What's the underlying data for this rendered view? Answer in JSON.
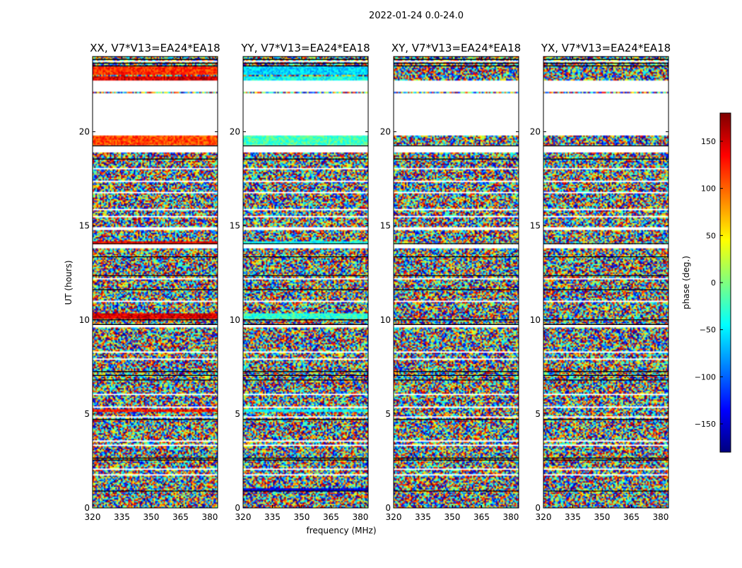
{
  "figure": {
    "suptitle": "2022-01-24 0.0-24.0",
    "xlabel": "frequency (MHz)",
    "ylabel": "UT (hours)"
  },
  "colorbar": {
    "label": "phase (deg.)",
    "range": [
      -180,
      180
    ],
    "ticks": [
      -150,
      -100,
      -50,
      0,
      50,
      100,
      150
    ],
    "tick_labels": [
      "−150",
      "−100",
      "−50",
      "0",
      "50",
      "100",
      "150"
    ],
    "colormap": [
      "#00007f",
      "#0000ff",
      "#007fff",
      "#00ffff",
      "#7fff7f",
      "#ffff00",
      "#ff7f00",
      "#ff0000",
      "#7f0000"
    ]
  },
  "chart_data": [
    {
      "type": "heatmap",
      "title": "XX, V7*V13=EA24*EA18",
      "polarization": "XX",
      "xlabel": "",
      "ylabel": "UT (hours)",
      "xlim": [
        320,
        384
      ],
      "ylim": [
        0,
        24
      ],
      "xticks": [
        320,
        335,
        350,
        365,
        380
      ],
      "yticks": [
        0,
        5,
        10,
        15,
        20
      ],
      "value": "phase (deg.)",
      "coherent_bands": [
        {
          "start": 23.0,
          "end": 23.45,
          "phase": 120
        },
        {
          "start": 22.75,
          "end": 22.95,
          "phase": 150
        },
        {
          "start": 19.3,
          "end": 19.8,
          "phase": 110
        },
        {
          "start": 14.0,
          "end": 14.15,
          "phase": 140
        },
        {
          "start": 10.05,
          "end": 10.35,
          "phase": 150
        },
        {
          "start": 5.1,
          "end": 5.25,
          "phase": 130
        }
      ]
    },
    {
      "type": "heatmap",
      "title": "YY, V7*V13=EA24*EA18",
      "polarization": "YY",
      "xlabel": "frequency (MHz)",
      "ylabel": "",
      "xlim": [
        320,
        384
      ],
      "ylim": [
        0,
        24
      ],
      "xticks": [
        320,
        335,
        350,
        365,
        380
      ],
      "yticks": [
        0,
        5,
        10,
        15,
        20
      ],
      "value": "phase (deg.)",
      "coherent_bands": [
        {
          "start": 23.0,
          "end": 23.45,
          "phase": -60
        },
        {
          "start": 22.75,
          "end": 22.95,
          "phase": -40
        },
        {
          "start": 19.3,
          "end": 19.8,
          "phase": -20
        },
        {
          "start": 14.0,
          "end": 14.15,
          "phase": -40
        },
        {
          "start": 10.05,
          "end": 10.35,
          "phase": -30
        },
        {
          "start": 5.1,
          "end": 5.25,
          "phase": -50
        },
        {
          "start": 0.9,
          "end": 1.05,
          "phase": -150
        }
      ]
    },
    {
      "type": "heatmap",
      "title": "XY, V7*V13=EA24*EA18",
      "polarization": "XY",
      "xlabel": "",
      "ylabel": "",
      "xlim": [
        320,
        384
      ],
      "ylim": [
        0,
        24
      ],
      "xticks": [
        320,
        335,
        350,
        365,
        380
      ],
      "yticks": [
        0,
        5,
        10,
        15,
        20
      ],
      "value": "phase (deg.)",
      "coherent_bands": []
    },
    {
      "type": "heatmap",
      "title": "YX, V7*V13=EA24*EA18",
      "polarization": "YX",
      "xlabel": "",
      "ylabel": "",
      "xlim": [
        320,
        384
      ],
      "ylim": [
        0,
        24
      ],
      "xticks": [
        320,
        335,
        350,
        365,
        380
      ],
      "yticks": [
        0,
        5,
        10,
        15,
        20
      ],
      "value": "phase (deg.)",
      "coherent_bands": []
    }
  ],
  "time_structure": {
    "gaps_hours": [
      [
        18.9,
        19.25
      ],
      [
        19.8,
        22.05
      ],
      [
        22.15,
        22.7
      ],
      [
        13.8,
        14.0
      ],
      [
        9.6,
        9.75
      ]
    ],
    "thin_gaps_hours": [
      3.35,
      3.55,
      4.85,
      8.3,
      15.5,
      15.85,
      16.75,
      12.2,
      11.0,
      2.05,
      1.75,
      6.05,
      7.9,
      17.35,
      18.05,
      5.35,
      14.85,
      23.75
    ],
    "black_lines_hours": [
      0.9,
      2.55,
      2.65,
      4.7,
      6.8,
      7.05,
      7.25,
      9.75,
      10.0,
      11.6,
      12.35,
      13.35,
      14.05,
      18.55,
      19.25,
      23.5,
      23.65,
      23.85
    ]
  }
}
